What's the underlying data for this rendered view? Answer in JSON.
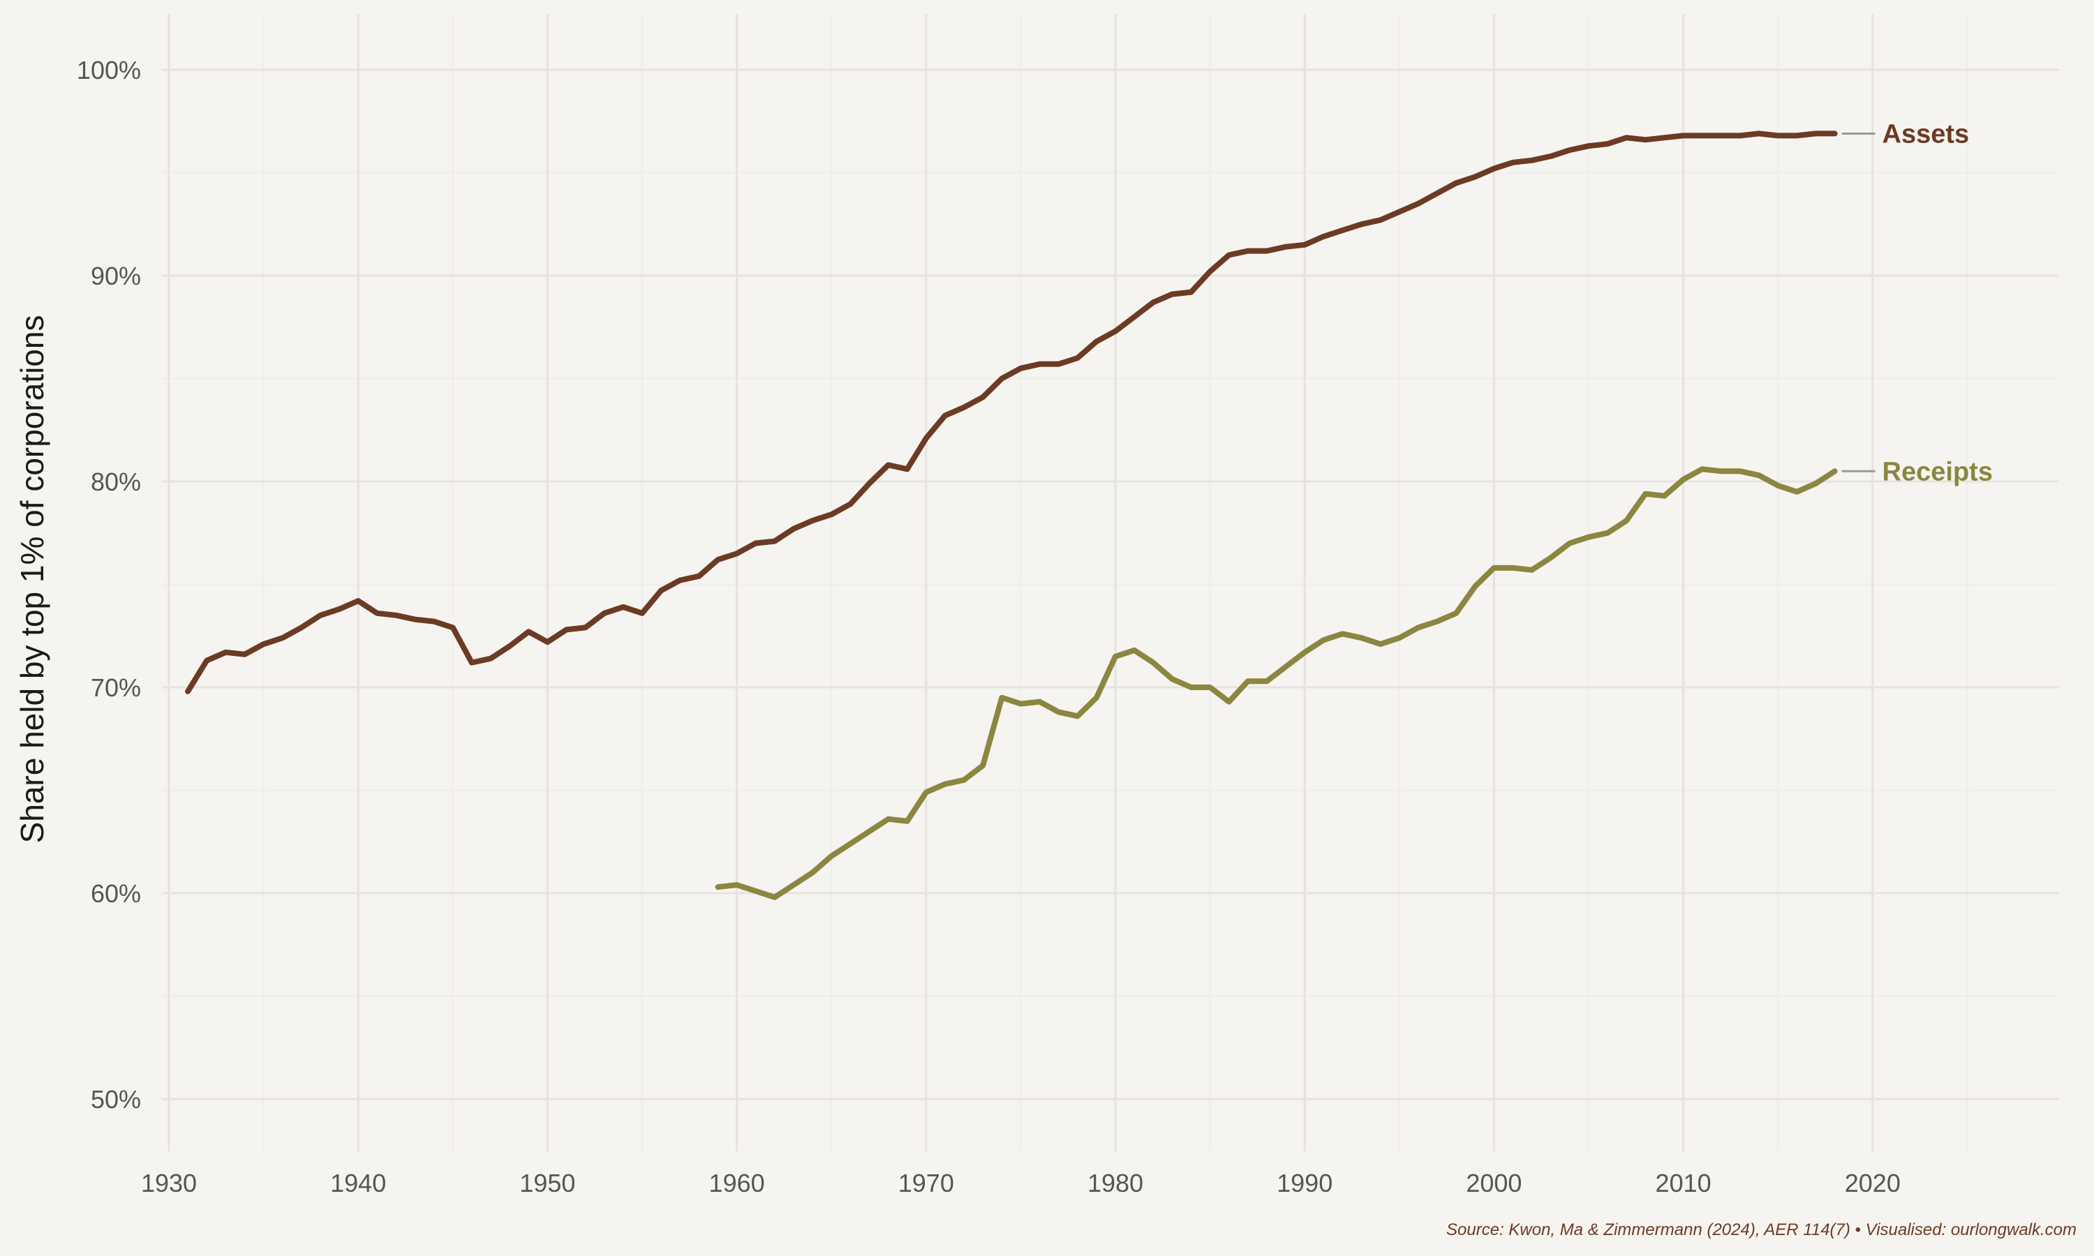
{
  "chart_data": {
    "type": "line",
    "ylabel": "Share held by top 1% of corporations",
    "xlabel": "",
    "title": "",
    "caption": "Source: Kwon, Ma & Zimmermann (2024), AER 114(7) • Visualised: ourlongwalk.com",
    "xlim": [
      1930,
      2029
    ],
    "ylim": [
      48,
      102
    ],
    "x_ticks": [
      1930,
      1940,
      1950,
      1960,
      1970,
      1980,
      1990,
      2000,
      2010,
      2020
    ],
    "x_tick_labels": [
      "1930",
      "1940",
      "1950",
      "1960",
      "1970",
      "1980",
      "1990",
      "2000",
      "2010",
      "2020"
    ],
    "y_ticks": [
      50,
      60,
      70,
      80,
      90,
      100
    ],
    "y_tick_labels": [
      "50%",
      "60%",
      "70%",
      "80%",
      "90%",
      "100%"
    ],
    "grid": true,
    "legend": "direct-labels-right",
    "series": [
      {
        "name": "Assets",
        "color": "#6b3b23",
        "x": [
          1931,
          1932,
          1933,
          1934,
          1935,
          1936,
          1937,
          1938,
          1939,
          1940,
          1941,
          1942,
          1943,
          1944,
          1945,
          1946,
          1947,
          1948,
          1949,
          1950,
          1951,
          1952,
          1953,
          1954,
          1955,
          1956,
          1957,
          1958,
          1959,
          1960,
          1961,
          1962,
          1963,
          1964,
          1965,
          1966,
          1967,
          1968,
          1969,
          1970,
          1971,
          1972,
          1973,
          1974,
          1975,
          1976,
          1977,
          1978,
          1979,
          1980,
          1981,
          1982,
          1983,
          1984,
          1985,
          1986,
          1987,
          1988,
          1989,
          1990,
          1991,
          1992,
          1993,
          1994,
          1995,
          1996,
          1997,
          1998,
          1999,
          2000,
          2001,
          2002,
          2003,
          2004,
          2005,
          2006,
          2007,
          2008,
          2009,
          2010,
          2011,
          2012,
          2013,
          2014,
          2015,
          2016,
          2017,
          2018
        ],
        "values": [
          69.8,
          71.3,
          71.7,
          71.6,
          72.1,
          72.4,
          72.9,
          73.5,
          73.8,
          74.2,
          73.6,
          73.5,
          73.3,
          73.2,
          72.9,
          71.2,
          71.4,
          72.0,
          72.7,
          72.2,
          72.8,
          72.9,
          73.6,
          73.9,
          73.6,
          74.7,
          75.2,
          75.4,
          76.2,
          76.5,
          77.0,
          77.1,
          77.7,
          78.1,
          78.4,
          78.9,
          79.9,
          80.8,
          80.6,
          82.1,
          83.2,
          83.6,
          84.1,
          85.0,
          85.5,
          85.7,
          85.7,
          86.0,
          86.8,
          87.3,
          88.0,
          88.7,
          89.1,
          89.2,
          90.2,
          91.0,
          91.2,
          91.2,
          91.4,
          91.5,
          91.9,
          92.2,
          92.5,
          92.7,
          93.1,
          93.5,
          94.0,
          94.5,
          94.8,
          95.2,
          95.5,
          95.6,
          95.8,
          96.1,
          96.3,
          96.4,
          96.7,
          96.6,
          96.7,
          96.8,
          96.8,
          96.8,
          96.8,
          96.9,
          96.8,
          96.8,
          96.9,
          96.9
        ]
      },
      {
        "name": "Receipts",
        "color": "#8b8640",
        "x": [
          1959,
          1960,
          1961,
          1962,
          1963,
          1964,
          1965,
          1966,
          1967,
          1968,
          1969,
          1970,
          1971,
          1972,
          1973,
          1974,
          1975,
          1976,
          1977,
          1978,
          1979,
          1980,
          1981,
          1982,
          1983,
          1984,
          1985,
          1986,
          1987,
          1988,
          1989,
          1990,
          1991,
          1992,
          1993,
          1994,
          1995,
          1996,
          1997,
          1998,
          1999,
          2000,
          2001,
          2002,
          2003,
          2004,
          2005,
          2006,
          2007,
          2008,
          2009,
          2010,
          2011,
          2012,
          2013,
          2014,
          2015,
          2016,
          2017,
          2018
        ],
        "values": [
          60.3,
          60.4,
          60.1,
          59.8,
          60.4,
          61.0,
          61.8,
          62.4,
          63.0,
          63.6,
          63.5,
          64.9,
          65.3,
          65.5,
          66.2,
          69.5,
          69.2,
          69.3,
          68.8,
          68.6,
          69.5,
          71.5,
          71.8,
          71.2,
          70.4,
          70.0,
          70.0,
          69.3,
          70.3,
          70.3,
          71.0,
          71.7,
          72.3,
          72.6,
          72.4,
          72.1,
          72.4,
          72.9,
          73.2,
          73.6,
          74.9,
          75.8,
          75.8,
          75.7,
          76.3,
          77.0,
          77.3,
          77.5,
          78.1,
          79.4,
          79.3,
          80.1,
          80.6,
          80.5,
          80.5,
          80.3,
          79.8,
          79.5,
          79.9,
          80.5
        ]
      }
    ]
  }
}
